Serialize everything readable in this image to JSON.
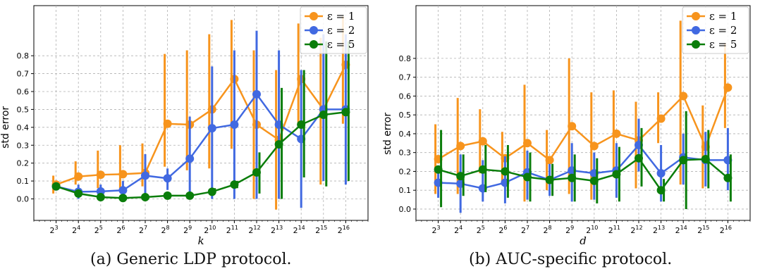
{
  "chart_data": [
    {
      "type": "line",
      "caption": "(a) Generic LDP protocol.",
      "xlabel": "k",
      "ylabel": "std error",
      "x_tick_labels": [
        {
          "base": "2",
          "exp": "3"
        },
        {
          "base": "2",
          "exp": "4"
        },
        {
          "base": "2",
          "exp": "5"
        },
        {
          "base": "2",
          "exp": "6"
        },
        {
          "base": "2",
          "exp": "7"
        },
        {
          "base": "2",
          "exp": "8"
        },
        {
          "base": "2",
          "exp": "9"
        },
        {
          "base": "2",
          "exp": "10"
        },
        {
          "base": "2",
          "exp": "11"
        },
        {
          "base": "2",
          "exp": "12"
        },
        {
          "base": "2",
          "exp": "13"
        },
        {
          "base": "2",
          "exp": "14"
        },
        {
          "base": "2",
          "exp": "15"
        },
        {
          "base": "2",
          "exp": "16"
        }
      ],
      "y_ticks": [
        "0.0",
        "0.1",
        "0.2",
        "0.3",
        "0.4",
        "0.5",
        "0.6",
        "0.7",
        "0.8"
      ],
      "ylim": [
        -0.12,
        1.08
      ],
      "grid": true,
      "legend_position": "top-right",
      "series": [
        {
          "name": "ε = 1",
          "color": "#f7941d",
          "values": [
            0.08,
            0.125,
            0.135,
            0.138,
            0.145,
            0.42,
            0.415,
            0.5,
            0.67,
            0.415,
            0.33,
            0.67,
            0.5,
            0.75
          ],
          "err_low": [
            0.03,
            0.08,
            0.06,
            0.06,
            0.07,
            0.18,
            0.16,
            0.17,
            0.28,
            0.0,
            -0.06,
            0.42,
            0.08,
            0.42
          ],
          "err_high": [
            0.13,
            0.21,
            0.27,
            0.3,
            0.31,
            0.81,
            0.83,
            0.92,
            1.0,
            0.83,
            0.72,
            0.98,
            0.9,
            1.02
          ]
        },
        {
          "name": "ε = 2",
          "color": "#4169e1",
          "values": [
            0.07,
            0.04,
            0.042,
            0.048,
            0.13,
            0.115,
            0.225,
            0.395,
            0.415,
            0.585,
            0.415,
            0.335,
            0.5,
            0.5
          ],
          "err_low": [
            0.05,
            0.0,
            0.0,
            0.0,
            0.01,
            0.05,
            0.0,
            0.0,
            0.0,
            0.0,
            0.0,
            -0.05,
            0.1,
            0.08
          ],
          "err_high": [
            0.09,
            0.08,
            0.08,
            0.1,
            0.25,
            0.17,
            0.46,
            0.74,
            0.83,
            0.94,
            0.83,
            0.72,
            0.92,
            0.92
          ]
        },
        {
          "name": "ε = 5",
          "color": "#0a7d0a",
          "values": [
            0.07,
            0.03,
            0.01,
            0.005,
            0.01,
            0.018,
            0.018,
            0.04,
            0.08,
            0.148,
            0.305,
            0.415,
            0.47,
            0.485
          ],
          "err_low": [
            0.06,
            0.02,
            0.0,
            0.0,
            0.0,
            0.01,
            0.01,
            0.03,
            0.06,
            0.03,
            0.0,
            0.12,
            0.07,
            0.1
          ],
          "err_high": [
            0.08,
            0.04,
            0.02,
            0.01,
            0.02,
            0.03,
            0.03,
            0.06,
            0.1,
            0.26,
            0.62,
            0.72,
            0.88,
            0.88
          ]
        }
      ]
    },
    {
      "type": "line",
      "caption": "(b) AUC-specific protocol.",
      "xlabel": "d",
      "ylabel": "std error",
      "x_tick_labels": [
        {
          "base": "2",
          "exp": "3"
        },
        {
          "base": "2",
          "exp": "4"
        },
        {
          "base": "2",
          "exp": "5"
        },
        {
          "base": "2",
          "exp": "6"
        },
        {
          "base": "2",
          "exp": "7"
        },
        {
          "base": "2",
          "exp": "8"
        },
        {
          "base": "2",
          "exp": "9"
        },
        {
          "base": "2",
          "exp": "10"
        },
        {
          "base": "2",
          "exp": "11"
        },
        {
          "base": "2",
          "exp": "12"
        },
        {
          "base": "2",
          "exp": "13"
        },
        {
          "base": "2",
          "exp": "14"
        },
        {
          "base": "2",
          "exp": "15"
        },
        {
          "base": "2",
          "exp": "16"
        }
      ],
      "y_ticks": [
        "0.0",
        "0.1",
        "0.2",
        "0.3",
        "0.4",
        "0.5",
        "0.6",
        "0.7",
        "0.8"
      ],
      "ylim": [
        -0.06,
        1.08
      ],
      "grid": true,
      "legend_position": "top-right",
      "series": [
        {
          "name": "ε = 1",
          "color": "#f7941d",
          "values": [
            0.265,
            0.335,
            0.36,
            0.27,
            0.35,
            0.26,
            0.44,
            0.335,
            0.4,
            0.365,
            0.48,
            0.6,
            0.33,
            0.645
          ],
          "err_low": [
            0.08,
            0.08,
            0.19,
            0.13,
            0.04,
            0.1,
            0.08,
            0.05,
            0.17,
            0.11,
            0.35,
            0.13,
            0.11,
            0.43
          ],
          "err_high": [
            0.45,
            0.59,
            0.53,
            0.41,
            0.66,
            0.42,
            0.8,
            0.62,
            0.63,
            0.57,
            0.62,
            1.0,
            0.55,
            0.88
          ]
        },
        {
          "name": "ε = 2",
          "color": "#4169e1",
          "values": [
            0.14,
            0.135,
            0.11,
            0.14,
            0.195,
            0.155,
            0.205,
            0.19,
            0.205,
            0.34,
            0.19,
            0.275,
            0.26,
            0.26
          ],
          "err_low": [
            0.06,
            -0.02,
            0.04,
            0.03,
            0.05,
            0.07,
            0.04,
            0.05,
            0.06,
            0.2,
            0.04,
            0.13,
            0.12,
            0.1
          ],
          "err_high": [
            0.22,
            0.29,
            0.26,
            0.28,
            0.31,
            0.24,
            0.35,
            0.3,
            0.35,
            0.48,
            0.34,
            0.4,
            0.41,
            0.43
          ]
        },
        {
          "name": "ε = 5",
          "color": "#0a7d0a",
          "values": [
            0.21,
            0.175,
            0.21,
            0.2,
            0.17,
            0.155,
            0.165,
            0.15,
            0.185,
            0.27,
            0.1,
            0.26,
            0.265,
            0.165
          ],
          "err_low": [
            0.01,
            0.07,
            0.09,
            0.06,
            0.04,
            0.07,
            0.04,
            0.03,
            0.04,
            0.12,
            0.04,
            0.0,
            0.11,
            0.04
          ],
          "err_high": [
            0.42,
            0.29,
            0.34,
            0.34,
            0.3,
            0.24,
            0.29,
            0.27,
            0.33,
            0.43,
            0.16,
            0.52,
            0.42,
            0.29
          ]
        }
      ]
    }
  ]
}
